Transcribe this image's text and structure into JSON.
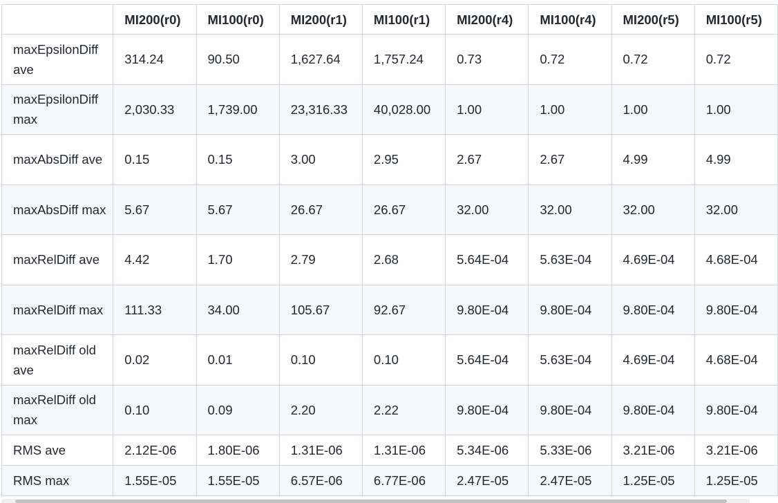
{
  "table": {
    "headers": [
      "",
      "MI200(r0)",
      "MI100(r0)",
      "MI200(r1)",
      "MI100(r1)",
      "MI200(r4)",
      "MI100(r4)",
      "MI200(r5)",
      "MI100(r5)"
    ],
    "rows": [
      {
        "label": "maxEpsilonDiff ave",
        "values": [
          "314.24",
          "90.50",
          "1,627.64",
          "1,757.24",
          "0.73",
          "0.72",
          "0.72",
          "0.72"
        ]
      },
      {
        "label": "maxEpsilonDiff max",
        "values": [
          "2,030.33",
          "1,739.00",
          "23,316.33",
          "40,028.00",
          "1.00",
          "1.00",
          "1.00",
          "1.00"
        ]
      },
      {
        "label": "maxAbsDiff ave",
        "values": [
          "0.15",
          "0.15",
          "3.00",
          "2.95",
          "2.67",
          "2.67",
          "4.99",
          "4.99"
        ]
      },
      {
        "label": "maxAbsDiff max",
        "values": [
          "5.67",
          "5.67",
          "26.67",
          "26.67",
          "32.00",
          "32.00",
          "32.00",
          "32.00"
        ]
      },
      {
        "label": "maxRelDiff ave",
        "values": [
          "4.42",
          "1.70",
          "2.79",
          "2.68",
          "5.64E-04",
          "5.63E-04",
          "4.69E-04",
          "4.68E-04"
        ]
      },
      {
        "label": "maxRelDiff max",
        "values": [
          "111.33",
          "34.00",
          "105.67",
          "92.67",
          "9.80E-04",
          "9.80E-04",
          "9.80E-04",
          "9.80E-04"
        ]
      },
      {
        "label": "maxRelDiff old ave",
        "values": [
          "0.02",
          "0.01",
          "0.10",
          "0.10",
          "5.64E-04",
          "5.63E-04",
          "4.69E-04",
          "4.68E-04"
        ]
      },
      {
        "label": "maxRelDiff old max",
        "values": [
          "0.10",
          "0.09",
          "2.20",
          "2.22",
          "9.80E-04",
          "9.80E-04",
          "9.80E-04",
          "9.80E-04"
        ]
      },
      {
        "label": "RMS ave",
        "values": [
          "2.12E-06",
          "1.80E-06",
          "1.31E-06",
          "1.31E-06",
          "5.34E-06",
          "5.33E-06",
          "3.21E-06",
          "3.21E-06"
        ]
      },
      {
        "label": "RMS max",
        "values": [
          "1.55E-05",
          "1.55E-05",
          "6.57E-06",
          "6.77E-06",
          "2.47E-05",
          "2.47E-05",
          "1.25E-05",
          "1.25E-05"
        ]
      }
    ]
  },
  "colors": {
    "border": "#d0d7de",
    "stripe": "#f6f8fa",
    "text": "#24292f"
  }
}
